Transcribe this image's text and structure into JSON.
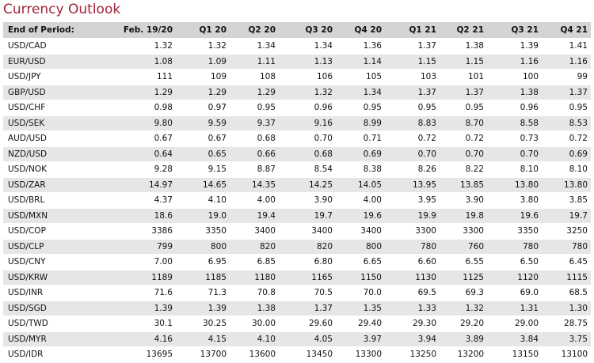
{
  "header": {
    "title": "Currency Outlook"
  },
  "table": {
    "columns": [
      "End of Period:",
      "Feb. 19/20",
      "Q1 20",
      "Q2 20",
      "Q3 20",
      "Q4 20",
      "Q1 21",
      "Q2 21",
      "Q3 21",
      "Q4 21"
    ],
    "rows": [
      [
        "USD/CAD",
        "1.32",
        "1.32",
        "1.34",
        "1.34",
        "1.36",
        "1.37",
        "1.38",
        "1.39",
        "1.41"
      ],
      [
        "EUR/USD",
        "1.08",
        "1.09",
        "1.11",
        "1.13",
        "1.14",
        "1.15",
        "1.15",
        "1.16",
        "1.16"
      ],
      [
        "USD/JPY",
        "111",
        "109",
        "108",
        "106",
        "105",
        "103",
        "101",
        "100",
        "99"
      ],
      [
        "GBP/USD",
        "1.29",
        "1.29",
        "1.29",
        "1.32",
        "1.34",
        "1.37",
        "1.37",
        "1.38",
        "1.37"
      ],
      [
        "USD/CHF",
        "0.98",
        "0.97",
        "0.95",
        "0.96",
        "0.95",
        "0.95",
        "0.95",
        "0.96",
        "0.95"
      ],
      [
        "USD/SEK",
        "9.80",
        "9.59",
        "9.37",
        "9.16",
        "8.99",
        "8.83",
        "8.70",
        "8.58",
        "8.53"
      ],
      [
        "AUD/USD",
        "0.67",
        "0.67",
        "0.68",
        "0.70",
        "0.71",
        "0.72",
        "0.72",
        "0.73",
        "0.72"
      ],
      [
        "NZD/USD",
        "0.64",
        "0.65",
        "0.66",
        "0.68",
        "0.69",
        "0.70",
        "0.70",
        "0.70",
        "0.69"
      ],
      [
        "USD/NOK",
        "9.28",
        "9.15",
        "8.87",
        "8.54",
        "8.38",
        "8.26",
        "8.22",
        "8.10",
        "8.10"
      ],
      [
        "USD/ZAR",
        "14.97",
        "14.65",
        "14.35",
        "14.25",
        "14.05",
        "13.95",
        "13.85",
        "13.80",
        "13.80"
      ],
      [
        "USD/BRL",
        "4.37",
        "4.10",
        "4.00",
        "3.90",
        "4.00",
        "3.95",
        "3.90",
        "3.80",
        "3.85"
      ],
      [
        "USD/MXN",
        "18.6",
        "19.0",
        "19.4",
        "19.7",
        "19.6",
        "19.9",
        "19.8",
        "19.6",
        "19.7"
      ],
      [
        "USD/COP",
        "3386",
        "3350",
        "3400",
        "3400",
        "3400",
        "3300",
        "3300",
        "3350",
        "3250"
      ],
      [
        "USD/CLP",
        "799",
        "800",
        "820",
        "820",
        "800",
        "780",
        "760",
        "780",
        "780"
      ],
      [
        "USD/CNY",
        "7.00",
        "6.95",
        "6.85",
        "6.80",
        "6.65",
        "6.60",
        "6.55",
        "6.50",
        "6.45"
      ],
      [
        "USD/KRW",
        "1189",
        "1185",
        "1180",
        "1165",
        "1150",
        "1130",
        "1125",
        "1120",
        "1115"
      ],
      [
        "USD/INR",
        "71.6",
        "71.3",
        "70.8",
        "70.5",
        "70.0",
        "69.5",
        "69.3",
        "69.0",
        "68.5"
      ],
      [
        "USD/SGD",
        "1.39",
        "1.39",
        "1.38",
        "1.37",
        "1.35",
        "1.33",
        "1.32",
        "1.31",
        "1.30"
      ],
      [
        "USD/TWD",
        "30.1",
        "30.25",
        "30.00",
        "29.60",
        "29.40",
        "29.30",
        "29.20",
        "29.00",
        "28.75"
      ],
      [
        "USD/MYR",
        "4.16",
        "4.15",
        "4.10",
        "4.05",
        "3.97",
        "3.94",
        "3.89",
        "3.84",
        "3.75"
      ],
      [
        "USD/IDR",
        "13695",
        "13700",
        "13600",
        "13450",
        "13300",
        "13250",
        "13200",
        "13150",
        "13100"
      ]
    ]
  }
}
